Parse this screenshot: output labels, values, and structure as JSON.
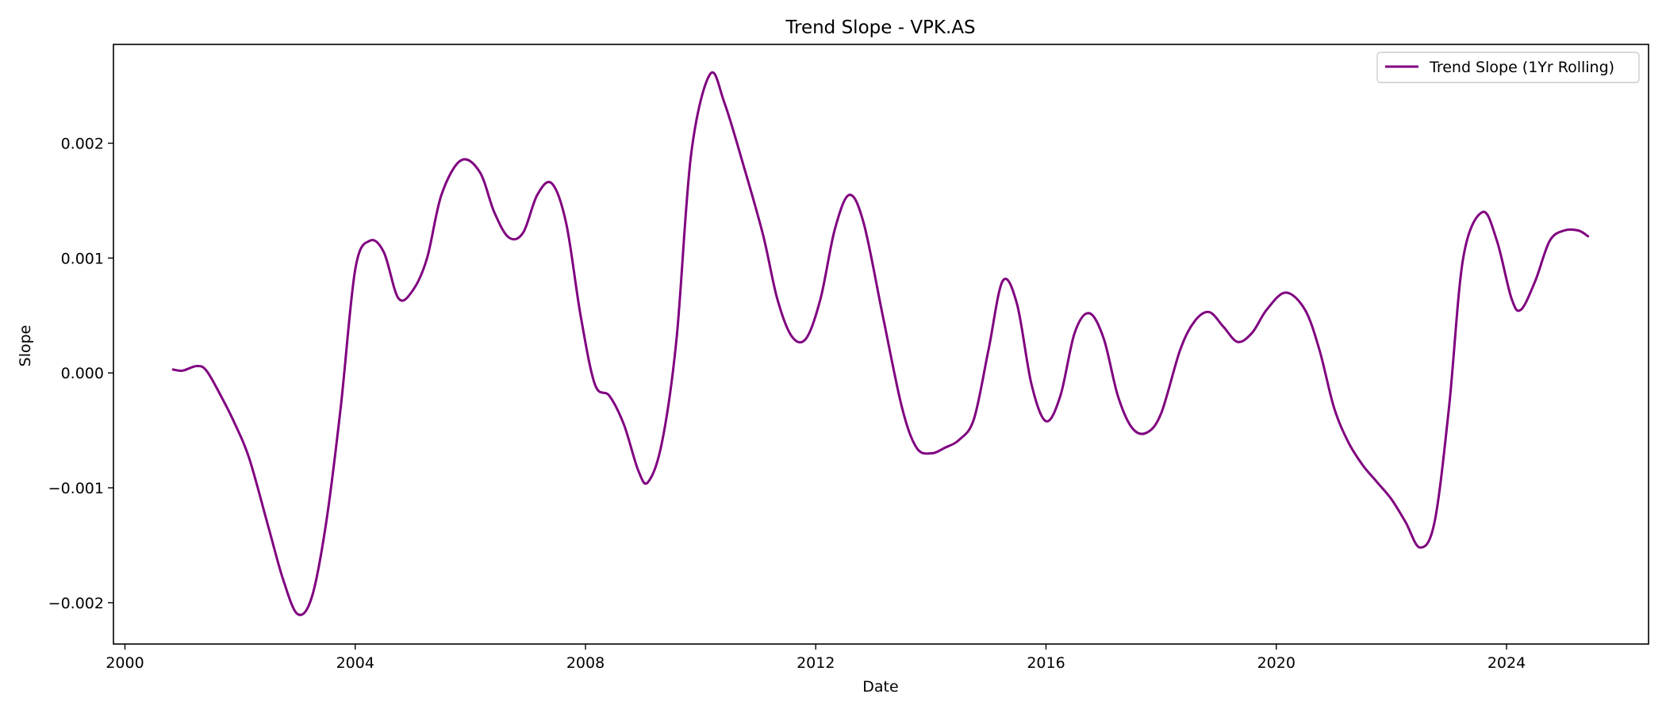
{
  "chart_data": {
    "type": "line",
    "title": "Trend Slope - VPK.AS",
    "xlabel": "Date",
    "ylabel": "Slope",
    "xlim": [
      "1999-10-20",
      "2026-06-20"
    ],
    "ylim": [
      -0.00236,
      0.00286
    ],
    "grid": false,
    "legend_position": "top-right",
    "x_ticks": [
      {
        "value": "2000-01-01",
        "label": "2000"
      },
      {
        "value": "2004-01-01",
        "label": "2004"
      },
      {
        "value": "2008-01-01",
        "label": "2008"
      },
      {
        "value": "2012-01-01",
        "label": "2012"
      },
      {
        "value": "2016-01-01",
        "label": "2016"
      },
      {
        "value": "2020-01-01",
        "label": "2020"
      },
      {
        "value": "2024-01-01",
        "label": "2024"
      }
    ],
    "y_ticks": [
      {
        "value": -0.002,
        "label": "−0.002"
      },
      {
        "value": -0.001,
        "label": "−0.001"
      },
      {
        "value": 0.0,
        "label": "0.000"
      },
      {
        "value": 0.001,
        "label": "0.001"
      },
      {
        "value": 0.002,
        "label": "0.002"
      }
    ],
    "series": [
      {
        "name": "Trend Slope (1Yr Rolling)",
        "color": "#800080",
        "points": [
          {
            "x": "2000-11-01",
            "y": 3e-05
          },
          {
            "x": "2001-01-01",
            "y": 2e-05
          },
          {
            "x": "2001-04-01",
            "y": 6e-05
          },
          {
            "x": "2001-06-01",
            "y": 2e-05
          },
          {
            "x": "2001-09-01",
            "y": -0.0002
          },
          {
            "x": "2001-12-01",
            "y": -0.00045
          },
          {
            "x": "2002-03-01",
            "y": -0.00075
          },
          {
            "x": "2002-07-01",
            "y": -0.00135
          },
          {
            "x": "2002-10-01",
            "y": -0.0018
          },
          {
            "x": "2003-01-01",
            "y": -0.0021
          },
          {
            "x": "2003-04-01",
            "y": -0.00195
          },
          {
            "x": "2003-07-01",
            "y": -0.0013
          },
          {
            "x": "2003-10-01",
            "y": -0.0003
          },
          {
            "x": "2004-01-01",
            "y": 0.0009
          },
          {
            "x": "2004-04-01",
            "y": 0.00115
          },
          {
            "x": "2004-07-01",
            "y": 0.00105
          },
          {
            "x": "2004-10-01",
            "y": 0.00065
          },
          {
            "x": "2005-01-01",
            "y": 0.00072
          },
          {
            "x": "2005-04-01",
            "y": 0.001
          },
          {
            "x": "2005-07-01",
            "y": 0.00155
          },
          {
            "x": "2005-11-01",
            "y": 0.00185
          },
          {
            "x": "2006-03-01",
            "y": 0.00175
          },
          {
            "x": "2006-06-01",
            "y": 0.0014
          },
          {
            "x": "2006-09-01",
            "y": 0.00118
          },
          {
            "x": "2006-12-01",
            "y": 0.00122
          },
          {
            "x": "2007-03-01",
            "y": 0.00155
          },
          {
            "x": "2007-06-01",
            "y": 0.00165
          },
          {
            "x": "2007-09-01",
            "y": 0.0013
          },
          {
            "x": "2007-12-01",
            "y": 0.0005
          },
          {
            "x": "2008-03-01",
            "y": -0.0001
          },
          {
            "x": "2008-06-01",
            "y": -0.0002
          },
          {
            "x": "2008-09-01",
            "y": -0.00045
          },
          {
            "x": "2008-12-01",
            "y": -0.00085
          },
          {
            "x": "2009-02-01",
            "y": -0.00095
          },
          {
            "x": "2009-05-01",
            "y": -0.0006
          },
          {
            "x": "2009-08-01",
            "y": 0.0003
          },
          {
            "x": "2009-11-01",
            "y": 0.0019
          },
          {
            "x": "2010-03-01",
            "y": 0.0026
          },
          {
            "x": "2010-06-01",
            "y": 0.00235
          },
          {
            "x": "2010-10-01",
            "y": 0.0018
          },
          {
            "x": "2011-02-01",
            "y": 0.0012
          },
          {
            "x": "2011-05-01",
            "y": 0.00065
          },
          {
            "x": "2011-08-01",
            "y": 0.00032
          },
          {
            "x": "2011-11-01",
            "y": 0.0003
          },
          {
            "x": "2012-02-01",
            "y": 0.00065
          },
          {
            "x": "2012-05-01",
            "y": 0.00125
          },
          {
            "x": "2012-08-01",
            "y": 0.00155
          },
          {
            "x": "2012-11-01",
            "y": 0.0013
          },
          {
            "x": "2013-03-01",
            "y": 0.0005
          },
          {
            "x": "2013-07-01",
            "y": -0.0003
          },
          {
            "x": "2013-10-01",
            "y": -0.00065
          },
          {
            "x": "2014-01-01",
            "y": -0.0007
          },
          {
            "x": "2014-04-01",
            "y": -0.00065
          },
          {
            "x": "2014-07-01",
            "y": -0.00058
          },
          {
            "x": "2014-10-01",
            "y": -0.0004
          },
          {
            "x": "2015-01-01",
            "y": 0.0002
          },
          {
            "x": "2015-04-01",
            "y": 0.0008
          },
          {
            "x": "2015-07-01",
            "y": 0.0006
          },
          {
            "x": "2015-10-01",
            "y": -0.0001
          },
          {
            "x": "2016-01-01",
            "y": -0.00042
          },
          {
            "x": "2016-04-01",
            "y": -0.0002
          },
          {
            "x": "2016-07-01",
            "y": 0.00035
          },
          {
            "x": "2016-10-01",
            "y": 0.00052
          },
          {
            "x": "2017-01-01",
            "y": 0.0003
          },
          {
            "x": "2017-04-01",
            "y": -0.0002
          },
          {
            "x": "2017-07-01",
            "y": -0.00048
          },
          {
            "x": "2017-10-01",
            "y": -0.00052
          },
          {
            "x": "2018-01-01",
            "y": -0.00035
          },
          {
            "x": "2018-05-01",
            "y": 0.0002
          },
          {
            "x": "2018-08-01",
            "y": 0.00045
          },
          {
            "x": "2018-11-01",
            "y": 0.00053
          },
          {
            "x": "2019-02-01",
            "y": 0.0004
          },
          {
            "x": "2019-05-01",
            "y": 0.00027
          },
          {
            "x": "2019-08-01",
            "y": 0.00035
          },
          {
            "x": "2019-11-01",
            "y": 0.00055
          },
          {
            "x": "2020-03-01",
            "y": 0.0007
          },
          {
            "x": "2020-07-01",
            "y": 0.00055
          },
          {
            "x": "2020-10-01",
            "y": 0.0002
          },
          {
            "x": "2021-01-01",
            "y": -0.0003
          },
          {
            "x": "2021-04-01",
            "y": -0.0006
          },
          {
            "x": "2021-07-01",
            "y": -0.0008
          },
          {
            "x": "2021-10-01",
            "y": -0.00095
          },
          {
            "x": "2022-01-01",
            "y": -0.0011
          },
          {
            "x": "2022-04-01",
            "y": -0.0013
          },
          {
            "x": "2022-07-01",
            "y": -0.00152
          },
          {
            "x": "2022-10-01",
            "y": -0.0013
          },
          {
            "x": "2023-01-01",
            "y": -0.0003
          },
          {
            "x": "2023-04-01",
            "y": 0.001
          },
          {
            "x": "2023-08-01",
            "y": 0.0014
          },
          {
            "x": "2023-11-01",
            "y": 0.00115
          },
          {
            "x": "2024-02-01",
            "y": 0.00065
          },
          {
            "x": "2024-04-01",
            "y": 0.00055
          },
          {
            "x": "2024-07-01",
            "y": 0.0008
          },
          {
            "x": "2024-10-01",
            "y": 0.00115
          },
          {
            "x": "2025-01-01",
            "y": 0.00124
          },
          {
            "x": "2025-04-01",
            "y": 0.00124
          },
          {
            "x": "2025-06-01",
            "y": 0.00119
          }
        ]
      }
    ]
  }
}
